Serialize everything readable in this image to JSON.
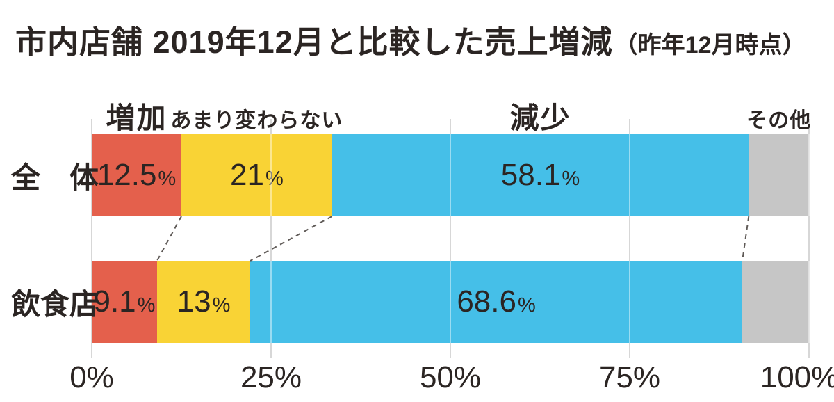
{
  "title": {
    "main": "市内店舗 2019年12月と比較した売上増減",
    "note": "（昨年12月時点）"
  },
  "colors": {
    "increase": "#e4604c",
    "no_change": "#f9d335",
    "decrease": "#45bfe8",
    "other": "#c6c6c6",
    "gridline": "#d7d7d7",
    "text": "#2b2523",
    "connector": "#5f5a57"
  },
  "chart_data": {
    "type": "bar",
    "stacked": true,
    "orientation": "horizontal",
    "title": "市内店舗 2019年12月と比較した売上増減（昨年12月時点）",
    "categories": [
      "全　体",
      "飲食店"
    ],
    "series": [
      {
        "key": "increase",
        "name": "増加",
        "color": "#e4604c",
        "values": [
          12.5,
          9.1
        ],
        "value_labels": [
          "12.5",
          "9.1"
        ],
        "header_size": "large"
      },
      {
        "key": "no-change",
        "name": "あまり変わらない",
        "color": "#f9d335",
        "values": [
          21,
          13
        ],
        "value_labels": [
          "21",
          "13"
        ],
        "header_size": "small"
      },
      {
        "key": "decrease",
        "name": "減少",
        "color": "#45bfe8",
        "values": [
          58.1,
          68.6
        ],
        "value_labels": [
          "58.1",
          "68.6"
        ],
        "header_size": "large"
      },
      {
        "key": "other",
        "name": "その他",
        "color": "#c6c6c6",
        "values": [
          8.4,
          9.3
        ],
        "value_labels": [
          "",
          ""
        ],
        "header_size": "small"
      }
    ],
    "value_unit": "%",
    "x_axis": {
      "tick_labels": [
        "0%",
        "25%",
        "50%",
        "75%",
        "100%"
      ],
      "range": [
        0,
        100
      ],
      "grid": true
    },
    "legend_position": "above-first-bar-segments",
    "annotations": "dashed connector lines link segment boundaries of the two bars"
  }
}
